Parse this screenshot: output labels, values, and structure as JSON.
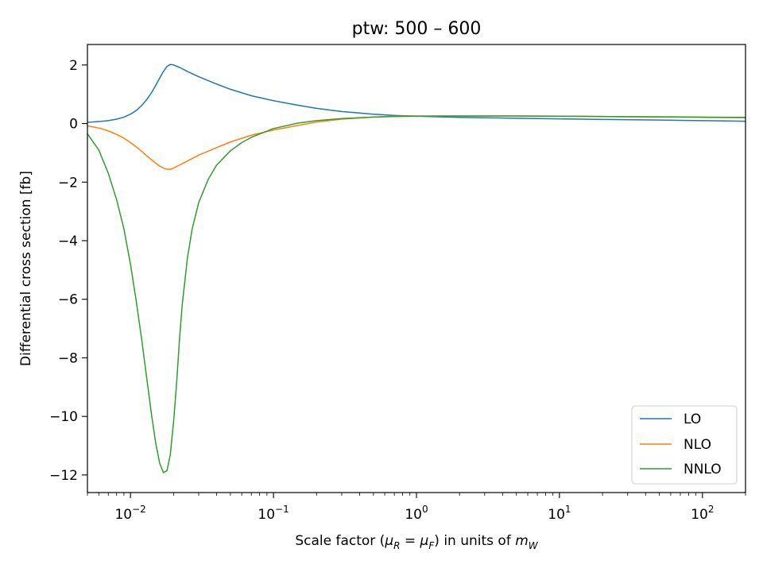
{
  "chart_data": {
    "type": "line",
    "title": "ptw: 500 – 600",
    "xlabel_parts": {
      "prefix": "Scale factor (",
      "mu": "μ",
      "sub_r": "R",
      "eq": " = ",
      "sub_f": "F",
      "mid": ") in units of ",
      "m": "m",
      "sub_w": "W"
    },
    "ylabel": "Differential cross section [fb]",
    "xscale": "log",
    "xlim": [
      0.005,
      200
    ],
    "ylim": [
      -12.6,
      2.7
    ],
    "x_ticks": [
      {
        "base": "10",
        "exp": "−2",
        "value": 0.01
      },
      {
        "base": "10",
        "exp": "−1",
        "value": 0.1
      },
      {
        "base": "10",
        "exp": "0",
        "value": 1
      },
      {
        "base": "10",
        "exp": "1",
        "value": 10
      },
      {
        "base": "10",
        "exp": "2",
        "value": 100
      }
    ],
    "y_ticks": [
      {
        "label": "2",
        "value": 2
      },
      {
        "label": "0",
        "value": 0
      },
      {
        "label": "−2",
        "value": -2
      },
      {
        "label": "−4",
        "value": -4
      },
      {
        "label": "−6",
        "value": -6
      },
      {
        "label": "−8",
        "value": -8
      },
      {
        "label": "−10",
        "value": -10
      },
      {
        "label": "−12",
        "value": -12
      }
    ],
    "legend_position": "lower-right",
    "grid": false,
    "series": [
      {
        "name": "LO",
        "color": "#1f77b4",
        "x": [
          0.005,
          0.006,
          0.007,
          0.008,
          0.009,
          0.01,
          0.011,
          0.012,
          0.013,
          0.014,
          0.015,
          0.016,
          0.017,
          0.018,
          0.019,
          0.02,
          0.022,
          0.025,
          0.03,
          0.04,
          0.05,
          0.07,
          0.1,
          0.15,
          0.2,
          0.3,
          0.5,
          0.7,
          1,
          2,
          5,
          10,
          20,
          50,
          100,
          200
        ],
        "y": [
          0.04,
          0.07,
          0.1,
          0.15,
          0.22,
          0.32,
          0.45,
          0.62,
          0.82,
          1.05,
          1.3,
          1.55,
          1.78,
          1.95,
          2.02,
          2.0,
          1.92,
          1.78,
          1.6,
          1.35,
          1.17,
          0.95,
          0.78,
          0.62,
          0.52,
          0.41,
          0.32,
          0.28,
          0.25,
          0.21,
          0.18,
          0.16,
          0.14,
          0.12,
          0.1,
          0.08
        ]
      },
      {
        "name": "NLO",
        "color": "#ff7f0e",
        "x": [
          0.005,
          0.006,
          0.007,
          0.008,
          0.009,
          0.01,
          0.011,
          0.012,
          0.013,
          0.014,
          0.015,
          0.016,
          0.017,
          0.018,
          0.019,
          0.02,
          0.022,
          0.025,
          0.03,
          0.04,
          0.05,
          0.07,
          0.1,
          0.15,
          0.2,
          0.3,
          0.5,
          0.7,
          1,
          2,
          5,
          10,
          20,
          50,
          100,
          200
        ],
        "y": [
          -0.08,
          -0.15,
          -0.25,
          -0.37,
          -0.5,
          -0.65,
          -0.8,
          -0.95,
          -1.1,
          -1.23,
          -1.35,
          -1.45,
          -1.52,
          -1.56,
          -1.56,
          -1.52,
          -1.42,
          -1.28,
          -1.08,
          -0.82,
          -0.63,
          -0.4,
          -0.22,
          -0.06,
          0.05,
          0.15,
          0.22,
          0.25,
          0.26,
          0.26,
          0.26,
          0.25,
          0.24,
          0.22,
          0.21,
          0.2
        ]
      },
      {
        "name": "NNLO",
        "color": "#2ca02c",
        "x": [
          0.005,
          0.006,
          0.007,
          0.008,
          0.009,
          0.01,
          0.011,
          0.012,
          0.013,
          0.014,
          0.015,
          0.016,
          0.017,
          0.018,
          0.019,
          0.02,
          0.021,
          0.022,
          0.023,
          0.025,
          0.027,
          0.03,
          0.035,
          0.04,
          0.05,
          0.06,
          0.07,
          0.1,
          0.15,
          0.2,
          0.3,
          0.5,
          0.7,
          1,
          2,
          5,
          10,
          20,
          50,
          100,
          200
        ],
        "y": [
          -0.35,
          -0.9,
          -1.7,
          -2.6,
          -3.6,
          -4.8,
          -6.1,
          -7.4,
          -8.7,
          -9.9,
          -10.9,
          -11.6,
          -11.92,
          -11.85,
          -11.3,
          -10.2,
          -8.9,
          -7.4,
          -6.2,
          -4.6,
          -3.6,
          -2.7,
          -1.9,
          -1.42,
          -0.93,
          -0.65,
          -0.47,
          -0.17,
          0.02,
          0.1,
          0.17,
          0.22,
          0.24,
          0.25,
          0.26,
          0.26,
          0.25,
          0.24,
          0.23,
          0.22,
          0.21
        ]
      }
    ]
  }
}
